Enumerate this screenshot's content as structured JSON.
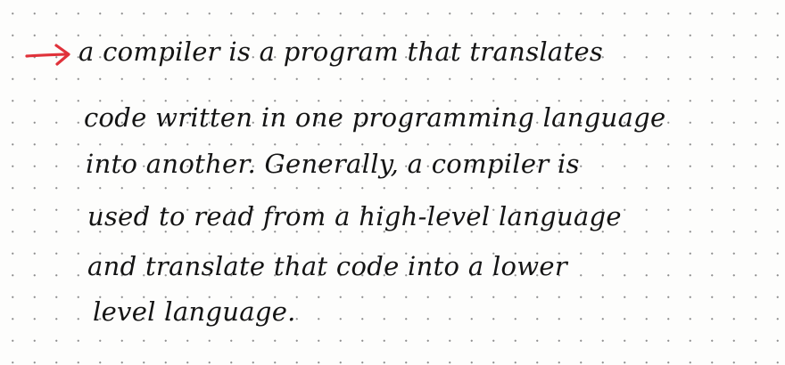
{
  "note": {
    "arrow_icon": "right-arrow-icon",
    "arrow_color": "#e0323a",
    "ink_color": "#141414",
    "lines": [
      "a compiler is a program that translates",
      "code written in one programming language",
      "into another. Generally, a compiler is",
      "used to read from a high-level language",
      "and translate that code into a lower",
      "level language."
    ]
  }
}
